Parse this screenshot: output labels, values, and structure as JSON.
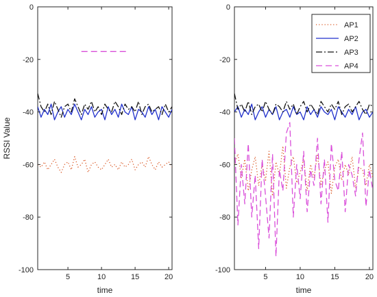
{
  "chart_data": [
    {
      "type": "line",
      "xlabel": "time",
      "ylabel": "RSSI Value",
      "xlim": [
        0.5,
        20.5
      ],
      "ylim": [
        -100,
        0
      ],
      "xticks": [
        5,
        10,
        15,
        20
      ],
      "yticks": [
        0,
        -20,
        -40,
        -60,
        -80,
        -100
      ],
      "grid": false,
      "series": [
        {
          "color": "#d9531e",
          "dash": "dotted",
          "x": [
            0.5,
            1.0,
            1.5,
            2.0,
            2.5,
            3.0,
            3.5,
            4.0,
            4.5,
            5.0,
            5.5,
            6.0,
            6.5,
            7.0,
            7.5,
            8.0,
            8.5,
            9.0,
            9.5,
            10.0,
            10.5,
            11.0,
            11.5,
            12.0,
            12.5,
            13.0,
            13.5,
            14.0,
            14.5,
            15.0,
            15.5,
            16.0,
            16.5,
            17.0,
            17.5,
            18.0,
            18.5,
            19.0,
            19.5,
            20.0,
            20.5
          ],
          "values": [
            -60,
            -61,
            -59,
            -62,
            -60,
            -58,
            -61,
            -63,
            -60,
            -59,
            -62,
            -57,
            -61,
            -60,
            -58,
            -63,
            -60,
            -59,
            -61,
            -62,
            -60,
            -58,
            -61,
            -60,
            -62,
            -59,
            -61,
            -60,
            -58,
            -62,
            -60,
            -59,
            -61,
            -57,
            -60,
            -62,
            -59,
            -61,
            -60,
            -59,
            -61
          ]
        },
        {
          "color": "#1f2fcc",
          "dash": "solid",
          "x": [
            0.5,
            1.0,
            1.5,
            2.0,
            2.5,
            3.0,
            3.5,
            4.0,
            4.5,
            5.0,
            5.5,
            6.0,
            6.5,
            7.0,
            7.5,
            8.0,
            8.5,
            9.0,
            9.5,
            10.0,
            10.5,
            11.0,
            11.5,
            12.0,
            12.5,
            13.0,
            13.5,
            14.0,
            14.5,
            15.0,
            15.5,
            16.0,
            16.5,
            17.0,
            17.5,
            18.0,
            18.5,
            19.0,
            19.5,
            20.0,
            20.5
          ],
          "values": [
            -38,
            -42,
            -39,
            -41,
            -37,
            -43,
            -40,
            -38,
            -42,
            -39,
            -41,
            -37,
            -40,
            -43,
            -39,
            -41,
            -38,
            -42,
            -40,
            -39,
            -43,
            -38,
            -41,
            -39,
            -42,
            -37,
            -40,
            -41,
            -38,
            -43,
            -39,
            -40,
            -42,
            -38,
            -41,
            -39,
            -43,
            -38,
            -40,
            -42,
            -39
          ]
        },
        {
          "color": "#111111",
          "dash": "dashdot",
          "x": [
            0.5,
            1.0,
            1.5,
            2.0,
            2.5,
            3.0,
            3.5,
            4.0,
            4.5,
            5.0,
            5.5,
            6.0,
            6.5,
            7.0,
            7.5,
            8.0,
            8.5,
            9.0,
            9.5,
            10.0,
            10.5,
            11.0,
            11.5,
            12.0,
            12.5,
            13.0,
            13.5,
            14.0,
            14.5,
            15.0,
            15.5,
            16.0,
            16.5,
            17.0,
            17.5,
            18.0,
            18.5,
            19.0,
            19.5,
            20.0,
            20.5
          ],
          "values": [
            -33,
            -38,
            -40,
            -37,
            -41,
            -36,
            -39,
            -42,
            -38,
            -37,
            -40,
            -35,
            -38,
            -41,
            -37,
            -39,
            -36,
            -40,
            -38,
            -41,
            -37,
            -39,
            -40,
            -36,
            -38,
            -41,
            -37,
            -39,
            -38,
            -40,
            -36,
            -41,
            -38,
            -37,
            -40,
            -39,
            -38,
            -41,
            -37,
            -40,
            -38
          ]
        },
        {
          "color": "#d94dd9",
          "dash": "dashed",
          "x": [
            7.0,
            7.5,
            8.0,
            8.5,
            9.0,
            9.5,
            10.0,
            10.5,
            11.0,
            11.5,
            12.0,
            12.5,
            13.0,
            13.5,
            14.0
          ],
          "values": [
            -17,
            -17,
            -17,
            -17,
            -17,
            -17,
            -17,
            -17,
            -17,
            -17,
            -17,
            -17,
            -17,
            -17,
            -17
          ]
        }
      ]
    },
    {
      "type": "line",
      "xlabel": "time",
      "xlim": [
        0.5,
        20.5
      ],
      "ylim": [
        -100,
        0
      ],
      "xticks": [
        5,
        10,
        15,
        20
      ],
      "yticks": [
        0,
        -20,
        -40,
        -60,
        -80,
        -100
      ],
      "grid": false,
      "legend": {
        "position": "top-right",
        "entries": [
          "AP1",
          "AP2",
          "AP3",
          "AP4"
        ]
      },
      "series": [
        {
          "name": "AP1",
          "color": "#d9531e",
          "dash": "dotted",
          "x": [
            0.5,
            1.0,
            1.5,
            2.0,
            2.5,
            3.0,
            3.5,
            4.0,
            4.5,
            5.0,
            5.5,
            6.0,
            6.5,
            7.0,
            7.5,
            8.0,
            8.5,
            9.0,
            9.5,
            10.0,
            10.5,
            11.0,
            11.5,
            12.0,
            12.5,
            13.0,
            13.5,
            14.0,
            14.5,
            15.0,
            15.5,
            16.0,
            16.5,
            17.0,
            17.5,
            18.0,
            18.5,
            19.0,
            19.5,
            20.0,
            20.5
          ],
          "values": [
            -60,
            -56,
            -65,
            -58,
            -70,
            -62,
            -57,
            -68,
            -60,
            -66,
            -55,
            -72,
            -59,
            -64,
            -53,
            -69,
            -61,
            -57,
            -67,
            -63,
            -58,
            -70,
            -60,
            -65,
            -56,
            -68,
            -62,
            -59,
            -71,
            -61,
            -58,
            -66,
            -60,
            -64,
            -57,
            -69,
            -61,
            -62,
            -68,
            -60,
            -65
          ]
        },
        {
          "name": "AP2",
          "color": "#1f2fcc",
          "dash": "solid",
          "x": [
            0.5,
            1.0,
            1.5,
            2.0,
            2.5,
            3.0,
            3.5,
            4.0,
            4.5,
            5.0,
            5.5,
            6.0,
            6.5,
            7.0,
            7.5,
            8.0,
            8.5,
            9.0,
            9.5,
            10.0,
            10.5,
            11.0,
            11.5,
            12.0,
            12.5,
            13.0,
            13.5,
            14.0,
            14.5,
            15.0,
            15.5,
            16.0,
            16.5,
            17.0,
            17.5,
            18.0,
            18.5,
            19.0,
            19.5,
            20.0,
            20.5
          ],
          "values": [
            -40,
            -38,
            -42,
            -39,
            -41,
            -37,
            -43,
            -40,
            -38,
            -42,
            -39,
            -41,
            -38,
            -43,
            -40,
            -39,
            -42,
            -38,
            -41,
            -40,
            -43,
            -38,
            -41,
            -39,
            -42,
            -38,
            -40,
            -41,
            -39,
            -43,
            -38,
            -40,
            -42,
            -39,
            -41,
            -38,
            -43,
            -40,
            -39,
            -42,
            -40
          ]
        },
        {
          "name": "AP3",
          "color": "#111111",
          "dash": "dashdot",
          "x": [
            0.5,
            1.0,
            1.5,
            2.0,
            2.5,
            3.0,
            3.5,
            4.0,
            4.5,
            5.0,
            5.5,
            6.0,
            6.5,
            7.0,
            7.5,
            8.0,
            8.5,
            9.0,
            9.5,
            10.0,
            10.5,
            11.0,
            11.5,
            12.0,
            12.5,
            13.0,
            13.5,
            14.0,
            14.5,
            15.0,
            15.5,
            16.0,
            16.5,
            17.0,
            17.5,
            18.0,
            18.5,
            19.0,
            19.5,
            20.0,
            20.5
          ],
          "values": [
            -33,
            -39,
            -37,
            -40,
            -36,
            -41,
            -38,
            -37,
            -40,
            -36,
            -39,
            -41,
            -37,
            -38,
            -40,
            -36,
            -39,
            -37,
            -41,
            -38,
            -36,
            -40,
            -37,
            -39,
            -41,
            -36,
            -38,
            -40,
            -37,
            -39,
            -36,
            -41,
            -38,
            -37,
            -40,
            -38,
            -36,
            -39,
            -41,
            -37,
            -38
          ]
        },
        {
          "name": "AP4",
          "color": "#d94dd9",
          "dash": "dashed",
          "x": [
            0.5,
            1.0,
            1.5,
            2.0,
            2.5,
            3.0,
            3.5,
            4.0,
            4.5,
            5.0,
            5.5,
            6.0,
            6.5,
            7.0,
            7.5,
            8.0,
            8.5,
            9.0,
            9.5,
            10.0,
            10.5,
            11.0,
            11.5,
            12.0,
            12.5,
            13.0,
            13.5,
            14.0,
            14.5,
            15.0,
            15.5,
            16.0,
            16.5,
            17.0,
            17.5,
            18.0,
            18.5,
            19.0,
            19.5,
            20.0,
            20.5
          ],
          "values": [
            -50,
            -83,
            -60,
            -75,
            -52,
            -80,
            -64,
            -92,
            -58,
            -72,
            -88,
            -56,
            -95,
            -62,
            -70,
            -48,
            -44,
            -80,
            -60,
            -73,
            -55,
            -78,
            -62,
            -68,
            -50,
            -75,
            -58,
            -82,
            -52,
            -66,
            -70,
            -55,
            -78,
            -60,
            -64,
            -72,
            -58,
            -48,
            -76,
            -62,
            -70
          ]
        }
      ]
    }
  ]
}
